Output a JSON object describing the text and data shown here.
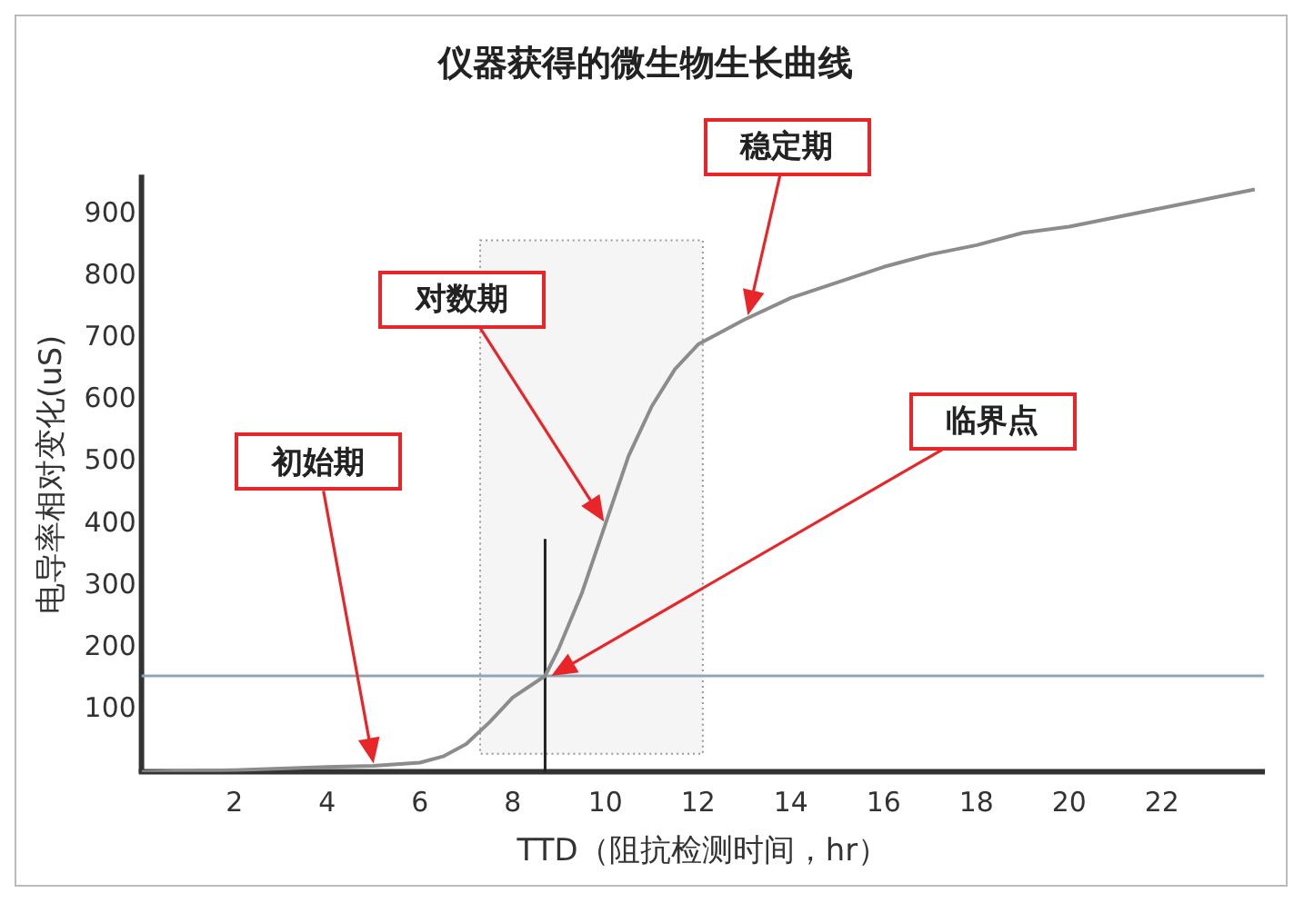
{
  "chart_data": {
    "type": "line",
    "title": "仪器获得的微生物生长曲线",
    "xlabel": "TTD（阻抗检测时间，hr）",
    "ylabel": "电导率相对变化(uS)",
    "x": [
      0,
      2,
      4,
      5,
      6,
      6.5,
      7,
      7.5,
      8,
      8.7,
      9,
      9.5,
      10,
      10.5,
      11,
      11.5,
      12,
      13,
      14,
      15,
      16,
      17,
      18,
      19,
      20,
      21,
      22,
      23,
      24
    ],
    "series": [
      {
        "color": "#8c8c8c",
        "values": [
          0,
          3,
          8,
          10,
          15,
          25,
          45,
          80,
          120,
          155,
          200,
          290,
          400,
          510,
          590,
          650,
          690,
          730,
          765,
          790,
          815,
          835,
          850,
          870,
          880,
          895,
          910,
          925,
          940
        ]
      }
    ],
    "xlim": [
      0,
      24.2
    ],
    "xticks": [
      2,
      4,
      6,
      8,
      10,
      12,
      14,
      16,
      18,
      20,
      22
    ],
    "ylim": [
      0,
      960
    ],
    "yticks": [
      100,
      200,
      300,
      400,
      500,
      600,
      700,
      800,
      900
    ],
    "grid": false,
    "legend": false,
    "marker": "none",
    "line_style": "solid",
    "ref_lines": [
      {
        "axis": "y",
        "value": 155,
        "color": "#8fa5b5"
      },
      {
        "axis": "x",
        "value": 8.7,
        "color": "#222222"
      }
    ],
    "bands": [
      {
        "axis": "x",
        "from": 7.3,
        "to": 12.1,
        "color": "#f5f5f5"
      }
    ],
    "annotations": [
      "初始期",
      "对数期",
      "稳定期",
      "临界点"
    ]
  }
}
